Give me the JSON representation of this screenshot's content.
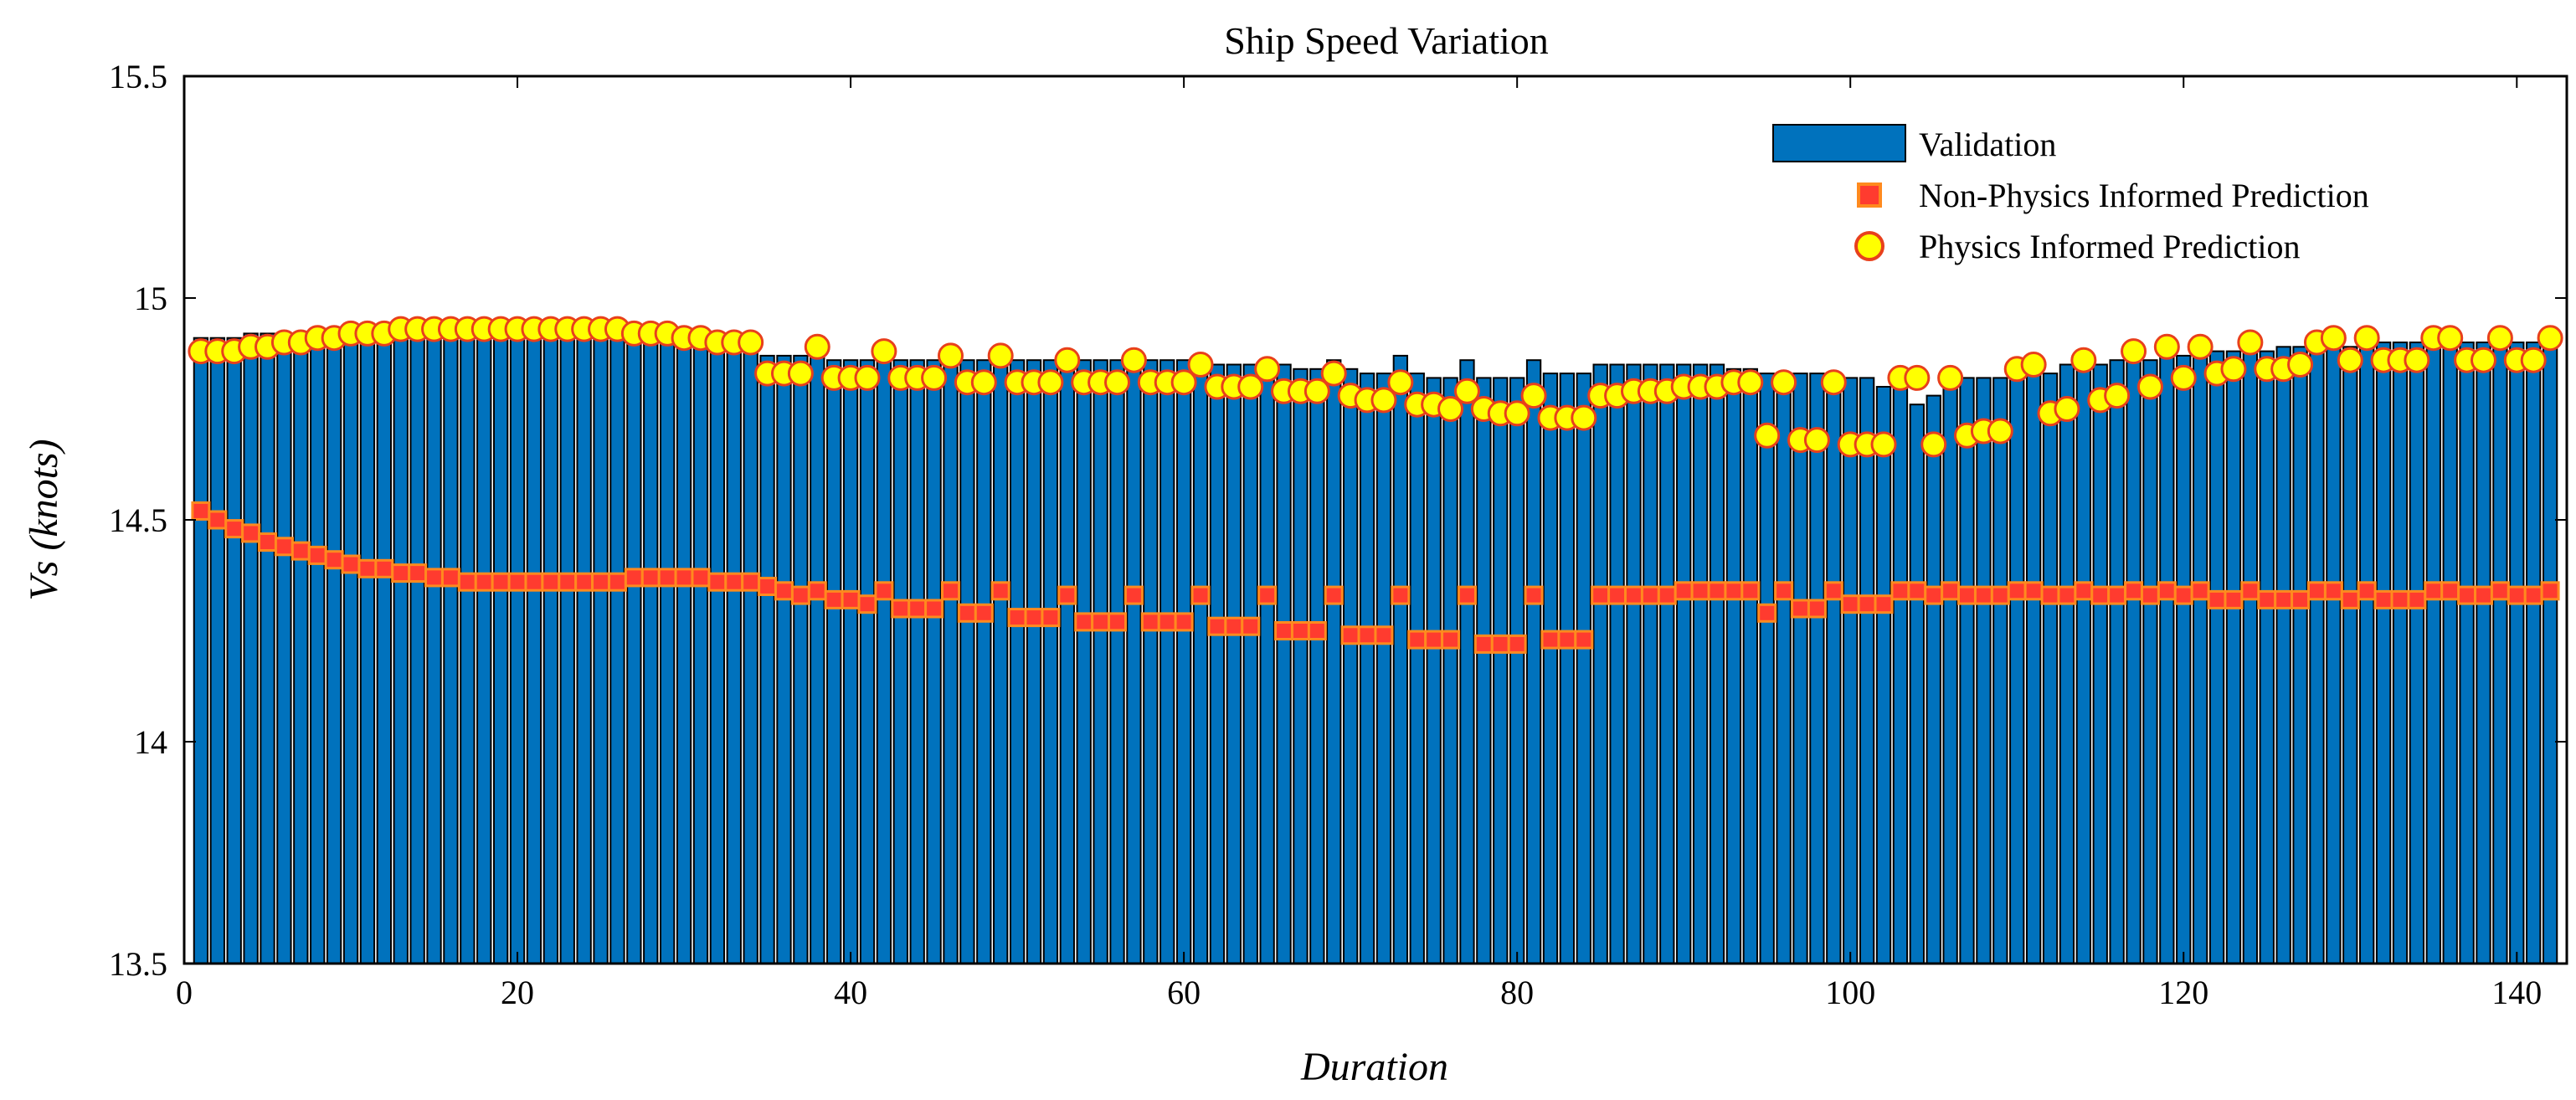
{
  "chart_data": {
    "type": "bar",
    "title": "Ship Speed Variation",
    "xlabel": "Duration",
    "ylabel": "Vs (knots)",
    "xlim": [
      0,
      143
    ],
    "ylim": [
      13.5,
      15.5
    ],
    "xticks": [
      0,
      20,
      40,
      60,
      80,
      100,
      120,
      140
    ],
    "yticks": [
      13.5,
      14,
      14.5,
      15,
      15.5
    ],
    "xtick_labels": [
      "0",
      "20",
      "40",
      "60",
      "80",
      "100",
      "120",
      "140"
    ],
    "ytick_labels": [
      "13.5",
      "14",
      "14.5",
      "15",
      "15.5"
    ],
    "legend_position": "top-right",
    "colors": {
      "bar_fill": "#0072BD",
      "bar_edge": "#000000",
      "square_fill": "#FF3B2F",
      "square_edge": "#FF8A1E",
      "circle_fill": "#FFFF00",
      "circle_edge": "#E8401C"
    },
    "series": [
      {
        "name": "Validation",
        "kind": "bar",
        "values": [
          14.91,
          14.91,
          14.91,
          14.92,
          14.92,
          14.92,
          14.92,
          14.92,
          14.92,
          14.92,
          14.92,
          14.92,
          14.92,
          14.92,
          14.92,
          14.92,
          14.92,
          14.92,
          14.92,
          14.92,
          14.92,
          14.92,
          14.92,
          14.92,
          14.92,
          14.91,
          14.91,
          14.91,
          14.91,
          14.91,
          14.91,
          14.91,
          14.91,
          14.9,
          14.87,
          14.87,
          14.87,
          14.87,
          14.86,
          14.86,
          14.86,
          14.86,
          14.86,
          14.86,
          14.86,
          14.86,
          14.86,
          14.86,
          14.86,
          14.86,
          14.86,
          14.86,
          14.86,
          14.86,
          14.86,
          14.86,
          14.86,
          14.86,
          14.86,
          14.86,
          14.86,
          14.85,
          14.85,
          14.85,
          14.85,
          14.85,
          14.84,
          14.84,
          14.86,
          14.84,
          14.83,
          14.83,
          14.87,
          14.83,
          14.82,
          14.82,
          14.86,
          14.82,
          14.82,
          14.82,
          14.86,
          14.83,
          14.83,
          14.83,
          14.85,
          14.85,
          14.85,
          14.85,
          14.85,
          14.85,
          14.85,
          14.85,
          14.84,
          14.84,
          14.83,
          14.83,
          14.83,
          14.83,
          14.82,
          14.82,
          14.82,
          14.8,
          14.8,
          14.76,
          14.78,
          14.8,
          14.82,
          14.82,
          14.82,
          14.83,
          14.83,
          14.83,
          14.85,
          14.85,
          14.85,
          14.86,
          14.86,
          14.86,
          14.87,
          14.87,
          14.88,
          14.88,
          14.88,
          14.88,
          14.88,
          14.89,
          14.89,
          14.89,
          14.89,
          14.89,
          14.9,
          14.9,
          14.9,
          14.9,
          14.9,
          14.9,
          14.9,
          14.9,
          14.9,
          14.9,
          14.9,
          14.9
        ]
      },
      {
        "name": "Non-Physics Informed Prediction",
        "kind": "square-marker",
        "values": [
          14.52,
          14.5,
          14.48,
          14.47,
          14.45,
          14.44,
          14.43,
          14.42,
          14.41,
          14.4,
          14.39,
          14.39,
          14.38,
          14.38,
          14.37,
          14.37,
          14.36,
          14.36,
          14.36,
          14.36,
          14.36,
          14.36,
          14.36,
          14.36,
          14.36,
          14.36,
          14.37,
          14.37,
          14.37,
          14.37,
          14.37,
          14.36,
          14.36,
          14.36,
          14.35,
          14.34,
          14.33,
          14.34,
          14.32,
          14.32,
          14.31,
          14.34,
          14.3,
          14.3,
          14.3,
          14.34,
          14.29,
          14.29,
          14.34,
          14.28,
          14.28,
          14.28,
          14.33,
          14.27,
          14.27,
          14.27,
          14.33,
          14.27,
          14.27,
          14.27,
          14.33,
          14.26,
          14.26,
          14.26,
          14.33,
          14.25,
          14.25,
          14.25,
          14.33,
          14.24,
          14.24,
          14.24,
          14.33,
          14.23,
          14.23,
          14.23,
          14.33,
          14.22,
          14.22,
          14.22,
          14.33,
          14.23,
          14.23,
          14.23,
          14.33,
          14.33,
          14.33,
          14.33,
          14.33,
          14.34,
          14.34,
          14.34,
          14.34,
          14.34,
          14.29,
          14.34,
          14.3,
          14.3,
          14.34,
          14.31,
          14.31,
          14.31,
          14.34,
          14.34,
          14.33,
          14.34,
          14.33,
          14.33,
          14.33,
          14.34,
          14.34,
          14.33,
          14.33,
          14.34,
          14.33,
          14.33,
          14.34,
          14.33,
          14.34,
          14.33,
          14.34,
          14.32,
          14.32,
          14.34,
          14.32,
          14.32,
          14.32,
          14.34,
          14.34,
          14.32,
          14.34,
          14.32,
          14.32,
          14.32,
          14.34,
          14.34,
          14.33,
          14.33,
          14.34,
          14.33,
          14.33,
          14.34
        ]
      },
      {
        "name": "Physics Informed Prediction",
        "kind": "circle-marker",
        "values": [
          14.88,
          14.88,
          14.88,
          14.89,
          14.89,
          14.9,
          14.9,
          14.91,
          14.91,
          14.92,
          14.92,
          14.92,
          14.93,
          14.93,
          14.93,
          14.93,
          14.93,
          14.93,
          14.93,
          14.93,
          14.93,
          14.93,
          14.93,
          14.93,
          14.93,
          14.93,
          14.92,
          14.92,
          14.92,
          14.91,
          14.91,
          14.9,
          14.9,
          14.9,
          14.83,
          14.83,
          14.83,
          14.89,
          14.82,
          14.82,
          14.82,
          14.88,
          14.82,
          14.82,
          14.82,
          14.87,
          14.81,
          14.81,
          14.87,
          14.81,
          14.81,
          14.81,
          14.86,
          14.81,
          14.81,
          14.81,
          14.86,
          14.81,
          14.81,
          14.81,
          14.85,
          14.8,
          14.8,
          14.8,
          14.84,
          14.79,
          14.79,
          14.79,
          14.83,
          14.78,
          14.77,
          14.77,
          14.81,
          14.76,
          14.76,
          14.75,
          14.79,
          14.75,
          14.74,
          14.74,
          14.78,
          14.73,
          14.73,
          14.73,
          14.78,
          14.78,
          14.79,
          14.79,
          14.79,
          14.8,
          14.8,
          14.8,
          14.81,
          14.81,
          14.69,
          14.81,
          14.68,
          14.68,
          14.81,
          14.67,
          14.67,
          14.67,
          14.82,
          14.82,
          14.67,
          14.82,
          14.69,
          14.7,
          14.7,
          14.84,
          14.85,
          14.74,
          14.75,
          14.86,
          14.77,
          14.78,
          14.88,
          14.8,
          14.89,
          14.82,
          14.89,
          14.83,
          14.84,
          14.9,
          14.84,
          14.84,
          14.85,
          14.9,
          14.91,
          14.86,
          14.91,
          14.86,
          14.86,
          14.86,
          14.91,
          14.91,
          14.86,
          14.86,
          14.91,
          14.86,
          14.86,
          14.91
        ]
      }
    ]
  }
}
